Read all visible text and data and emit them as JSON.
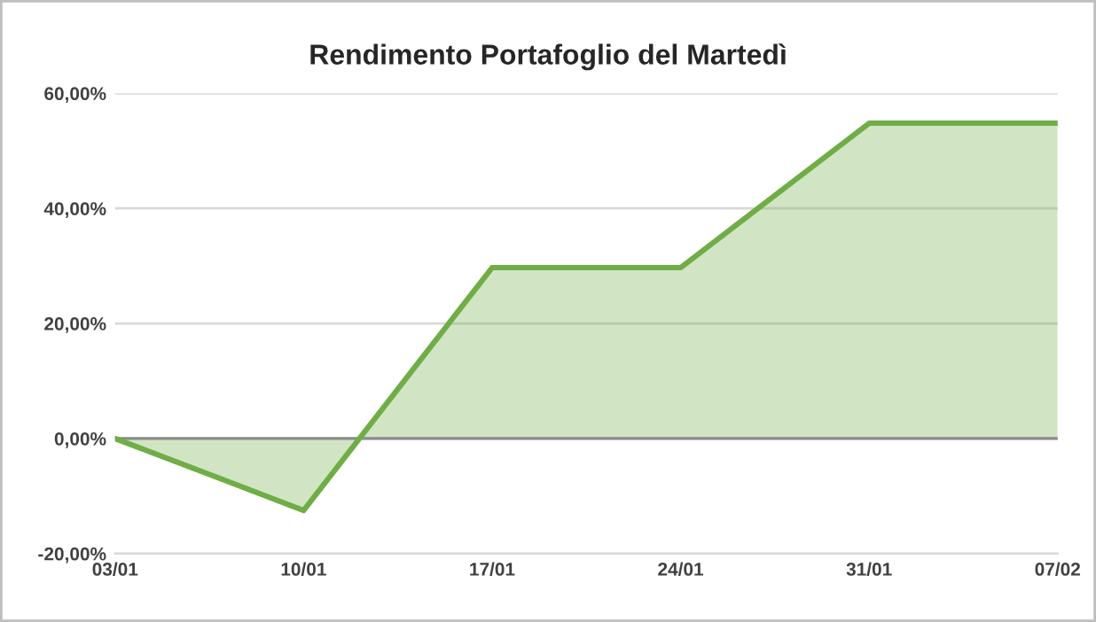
{
  "chart_data": {
    "type": "area",
    "title": "Rendimento Portafoglio del Martedì",
    "categories": [
      "03/01",
      "10/01",
      "17/01",
      "24/01",
      "31/01",
      "07/02"
    ],
    "series": [
      {
        "color": "#70ad47",
        "values": [
          0,
          -12.5,
          29.7,
          29.7,
          54.8,
          54.8
        ]
      }
    ],
    "ylim": [
      -20,
      60
    ],
    "yticks": [
      {
        "value": -20,
        "label": "-20,00%"
      },
      {
        "value": 0,
        "label": "0,00%"
      },
      {
        "value": 20,
        "label": "20,00%"
      },
      {
        "value": 40,
        "label": "40,00%"
      },
      {
        "value": 60,
        "label": "60,00%"
      }
    ],
    "grid": "y",
    "legend": false
  }
}
